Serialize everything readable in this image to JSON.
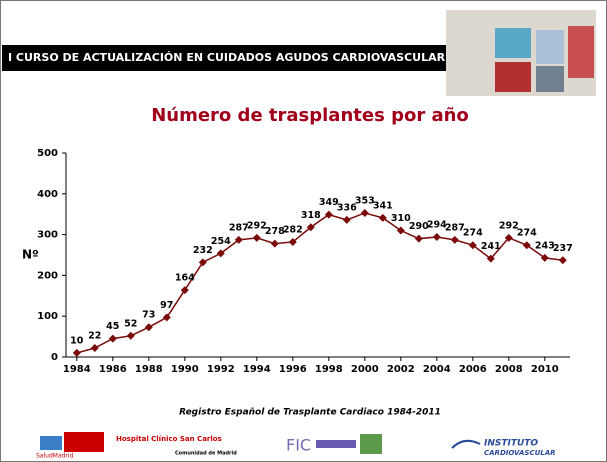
{
  "header": "I CURSO DE ACTUALIZACIÓN EN CUIDADOS AGUDOS CARDIOVASCULARES.",
  "chart_data": {
    "type": "line",
    "title": "Número de trasplantes por año",
    "y_label": "Nº",
    "x": [
      1984,
      1985,
      1986,
      1987,
      1988,
      1989,
      1990,
      1991,
      1992,
      1993,
      1994,
      1995,
      1996,
      1997,
      1998,
      1999,
      2000,
      2001,
      2002,
      2003,
      2004,
      2005,
      2006,
      2007,
      2008,
      2009,
      2010,
      2011
    ],
    "values": [
      10,
      22,
      45,
      52,
      73,
      97,
      164,
      232,
      254,
      287,
      292,
      278,
      282,
      318,
      349,
      336,
      353,
      341,
      310,
      290,
      294,
      287,
      274,
      241,
      292,
      274,
      243,
      237
    ],
    "color": "#7b0a0a",
    "xlim": [
      1983.4,
      2011.4
    ],
    "xticks": [
      1984,
      1986,
      1988,
      1990,
      1992,
      1994,
      1996,
      1998,
      2000,
      2002,
      2004,
      2006,
      2008,
      2010
    ],
    "ylim": [
      0,
      500
    ],
    "yticks": [
      0,
      100,
      200,
      300,
      400,
      500
    ],
    "grid": false,
    "source": "Registro Español de Trasplante Cardiaco 1984-2011"
  },
  "logos": {
    "salud": "SaludMadrid",
    "hospital": "Hospital Clínico San Carlos",
    "comunidad": "Comunidad de Madrid",
    "fic": "FIC",
    "instituto": "INSTITUTO",
    "cardio": "CARDIOVASCULAR"
  }
}
